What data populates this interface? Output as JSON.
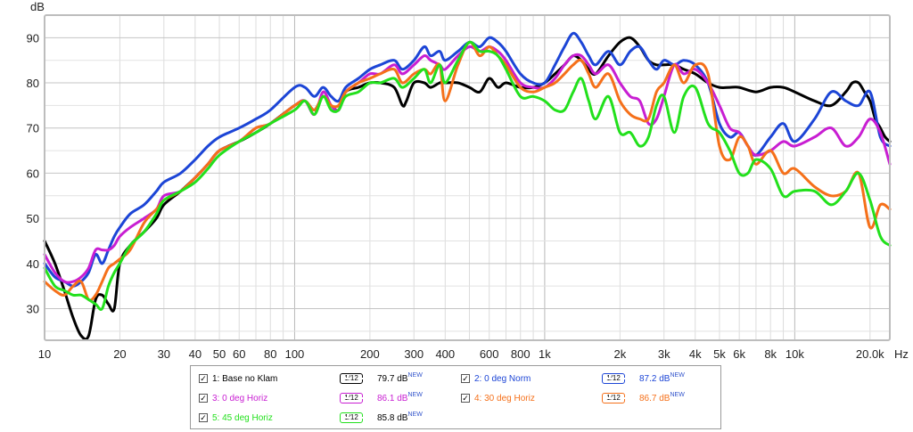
{
  "chart_data": {
    "type": "line",
    "title": "",
    "xlabel": "Hz",
    "ylabel": "dB",
    "xscale": "log",
    "xlim": [
      10,
      24000
    ],
    "ylim": [
      23,
      95
    ],
    "grid": true,
    "x_tick_labels": [
      {
        "v": 10,
        "t": "10"
      },
      {
        "v": 20,
        "t": "20"
      },
      {
        "v": 30,
        "t": "30"
      },
      {
        "v": 40,
        "t": "40"
      },
      {
        "v": 50,
        "t": "50"
      },
      {
        "v": 60,
        "t": "60"
      },
      {
        "v": 80,
        "t": "80"
      },
      {
        "v": 100,
        "t": "100"
      },
      {
        "v": 200,
        "t": "200"
      },
      {
        "v": 300,
        "t": "300"
      },
      {
        "v": 400,
        "t": "400"
      },
      {
        "v": 600,
        "t": "600"
      },
      {
        "v": 800,
        "t": "800"
      },
      {
        "v": 1000,
        "t": "1k"
      },
      {
        "v": 2000,
        "t": "2k"
      },
      {
        "v": 3000,
        "t": "3k"
      },
      {
        "v": 4000,
        "t": "4k"
      },
      {
        "v": 5000,
        "t": "5k"
      },
      {
        "v": 6000,
        "t": "6k"
      },
      {
        "v": 8000,
        "t": "8k"
      },
      {
        "v": 10000,
        "t": "10k"
      },
      {
        "v": 20000,
        "t": "20.0k"
      }
    ],
    "y_ticks": [
      30,
      40,
      50,
      60,
      70,
      80,
      90
    ],
    "series": [
      {
        "name": "1: Base no Klam",
        "color": "#000000",
        "level": "79.7 dB",
        "x": [
          10,
          11,
          12,
          13,
          14,
          15,
          16,
          17,
          18,
          19,
          20,
          22,
          25,
          28,
          30,
          35,
          40,
          45,
          50,
          60,
          70,
          80,
          100,
          110,
          120,
          130,
          140,
          150,
          160,
          180,
          200,
          220,
          250,
          270,
          280,
          300,
          330,
          350,
          380,
          400,
          450,
          500,
          550,
          600,
          650,
          700,
          800,
          900,
          1000,
          1100,
          1200,
          1300,
          1400,
          1500,
          1600,
          1800,
          2000,
          2200,
          2400,
          2600,
          2800,
          3000,
          3300,
          3600,
          4000,
          4500,
          5000,
          5500,
          6000,
          7000,
          8000,
          9000,
          10000,
          12000,
          14000,
          16000,
          17000,
          18000,
          19000,
          20000,
          21000,
          22000,
          23000,
          24000
        ],
        "y": [
          45,
          40,
          34,
          28,
          24,
          24,
          32,
          33,
          31,
          30,
          40,
          44,
          47,
          50,
          53,
          56,
          59,
          62,
          65,
          67,
          69,
          71,
          75,
          76,
          74,
          77,
          75,
          74,
          78,
          79,
          80,
          80,
          79,
          75,
          76,
          80,
          80,
          79,
          80,
          80,
          80,
          79,
          78,
          81,
          79,
          80,
          79,
          79,
          80,
          82,
          84,
          86,
          85,
          83,
          82,
          86,
          89,
          90,
          88,
          85,
          84,
          84,
          84,
          83,
          82,
          80,
          79,
          79,
          79,
          78,
          79,
          79,
          78,
          76,
          75,
          78,
          80,
          80,
          78,
          76,
          72,
          70,
          68,
          67
        ]
      },
      {
        "name": "2: 0 deg Norm",
        "color": "#1c45d6",
        "level": "87.2 dB",
        "x": [
          10,
          11,
          12,
          13,
          14,
          15,
          16,
          17,
          18,
          19,
          20,
          22,
          25,
          28,
          30,
          35,
          40,
          45,
          50,
          60,
          70,
          80,
          100,
          110,
          120,
          130,
          140,
          150,
          160,
          180,
          200,
          220,
          250,
          270,
          300,
          330,
          350,
          380,
          400,
          450,
          500,
          550,
          600,
          650,
          700,
          800,
          900,
          1000,
          1100,
          1200,
          1300,
          1400,
          1500,
          1600,
          1800,
          2000,
          2200,
          2400,
          2600,
          2800,
          3000,
          3300,
          3600,
          4000,
          4500,
          5000,
          5500,
          6000,
          6500,
          7000,
          8000,
          9000,
          10000,
          12000,
          14000,
          16000,
          18000,
          20000,
          22000,
          24000
        ],
        "y": [
          40,
          37,
          36,
          35,
          36,
          38,
          42,
          40,
          43,
          46,
          48,
          51,
          53,
          56,
          58,
          60,
          63,
          66,
          68,
          70,
          72,
          74,
          79,
          79,
          77,
          79,
          77,
          76,
          79,
          81,
          83,
          84,
          85,
          83,
          85,
          88,
          86,
          87,
          85,
          87,
          89,
          88,
          90,
          89,
          87,
          82,
          80,
          80,
          84,
          88,
          91,
          89,
          86,
          84,
          87,
          84,
          87,
          88,
          85,
          83,
          85,
          84,
          85,
          84,
          80,
          71,
          68,
          69,
          66,
          64,
          68,
          71,
          67,
          72,
          78,
          76,
          75,
          78,
          68,
          66
        ]
      },
      {
        "name": "3: 0 deg Horiz",
        "color": "#c81ed2",
        "level": "86.1 dB",
        "x": [
          10,
          11,
          12,
          13,
          14,
          15,
          16,
          17,
          18,
          19,
          20,
          22,
          25,
          28,
          30,
          35,
          40,
          45,
          50,
          60,
          70,
          80,
          100,
          110,
          120,
          130,
          140,
          150,
          160,
          180,
          200,
          220,
          250,
          270,
          300,
          330,
          350,
          380,
          400,
          450,
          500,
          550,
          600,
          650,
          700,
          800,
          900,
          1000,
          1100,
          1200,
          1300,
          1400,
          1500,
          1600,
          1800,
          2000,
          2200,
          2400,
          2600,
          2800,
          3000,
          3300,
          3600,
          4000,
          4500,
          5000,
          5500,
          6000,
          6500,
          7000,
          8000,
          9000,
          10000,
          12000,
          14000,
          16000,
          18000,
          20000,
          22000,
          24000
        ],
        "y": [
          42,
          38,
          36,
          36,
          37,
          39,
          43,
          43,
          43,
          44,
          46,
          48,
          50,
          52,
          55,
          56,
          59,
          62,
          65,
          67,
          70,
          71,
          75,
          76,
          73,
          78,
          75,
          74,
          78,
          80,
          82,
          82,
          84,
          82,
          84,
          86,
          85,
          84,
          83,
          86,
          88,
          87,
          88,
          87,
          85,
          80,
          79,
          79,
          81,
          84,
          86,
          86,
          84,
          82,
          84,
          80,
          77,
          76,
          71,
          72,
          77,
          84,
          82,
          83,
          80,
          75,
          70,
          69,
          66,
          64,
          65,
          67,
          66,
          68,
          70,
          66,
          68,
          72,
          69,
          62
        ]
      },
      {
        "name": "4: 30 deg Horiz",
        "color": "#f5701a",
        "level": "86.7 dB",
        "x": [
          10,
          11,
          12,
          13,
          14,
          15,
          16,
          17,
          18,
          19,
          20,
          22,
          25,
          28,
          30,
          35,
          40,
          45,
          50,
          60,
          70,
          80,
          100,
          110,
          120,
          130,
          140,
          150,
          160,
          180,
          200,
          220,
          250,
          270,
          300,
          330,
          350,
          380,
          400,
          450,
          500,
          550,
          600,
          650,
          700,
          800,
          900,
          1000,
          1100,
          1200,
          1300,
          1400,
          1500,
          1600,
          1800,
          2000,
          2200,
          2400,
          2600,
          2800,
          3000,
          3300,
          3600,
          4000,
          4500,
          5000,
          5500,
          6000,
          6500,
          7000,
          8000,
          9000,
          10000,
          12000,
          14000,
          16000,
          18000,
          20000,
          22000,
          24000
        ],
        "y": [
          36,
          34,
          33,
          35,
          36,
          32,
          33,
          36,
          39,
          40,
          41,
          43,
          49,
          52,
          54,
          56,
          59,
          62,
          65,
          67,
          70,
          71,
          75,
          76,
          74,
          77,
          75,
          75,
          78,
          80,
          81,
          82,
          83,
          80,
          82,
          83,
          82,
          84,
          76,
          84,
          89,
          86,
          88,
          86,
          84,
          79,
          78,
          79,
          80,
          82,
          84,
          85,
          82,
          79,
          82,
          76,
          73,
          72,
          72,
          78,
          80,
          84,
          80,
          84,
          82,
          66,
          63,
          68,
          66,
          62,
          65,
          60,
          61,
          57,
          55,
          56,
          60,
          48,
          53,
          52
        ]
      },
      {
        "name": "5: 45 deg Horiz",
        "color": "#22e01c",
        "level": "85.8 dB",
        "x": [
          10,
          11,
          12,
          13,
          14,
          15,
          16,
          17,
          18,
          19,
          20,
          22,
          25,
          28,
          30,
          35,
          40,
          45,
          50,
          60,
          70,
          80,
          100,
          110,
          120,
          130,
          140,
          150,
          160,
          180,
          200,
          220,
          250,
          270,
          300,
          330,
          350,
          380,
          400,
          450,
          500,
          550,
          600,
          650,
          700,
          800,
          900,
          1000,
          1100,
          1200,
          1300,
          1400,
          1500,
          1600,
          1800,
          2000,
          2200,
          2400,
          2600,
          2800,
          3000,
          3300,
          3600,
          4000,
          4500,
          5000,
          5500,
          6000,
          6500,
          7000,
          8000,
          9000,
          10000,
          12000,
          14000,
          16000,
          18000,
          20000,
          22000,
          24000
        ],
        "y": [
          39,
          35,
          34,
          33,
          33,
          32,
          31,
          30,
          35,
          38,
          40,
          44,
          47,
          51,
          54,
          56,
          58,
          61,
          64,
          67,
          69,
          71,
          74,
          76,
          73,
          77,
          74,
          74,
          77,
          78,
          80,
          80,
          81,
          79,
          81,
          83,
          80,
          84,
          80,
          85,
          89,
          87,
          87,
          86,
          83,
          77,
          77,
          76,
          74,
          74,
          78,
          81,
          76,
          72,
          77,
          69,
          69,
          66,
          68,
          75,
          77,
          69,
          77,
          79,
          71,
          69,
          65,
          60,
          60,
          63,
          61,
          55,
          56,
          56,
          53,
          56,
          60,
          54,
          46,
          44
        ]
      }
    ]
  },
  "legend": {
    "smooth_label": "1/12",
    "new_badge": "NEW"
  }
}
